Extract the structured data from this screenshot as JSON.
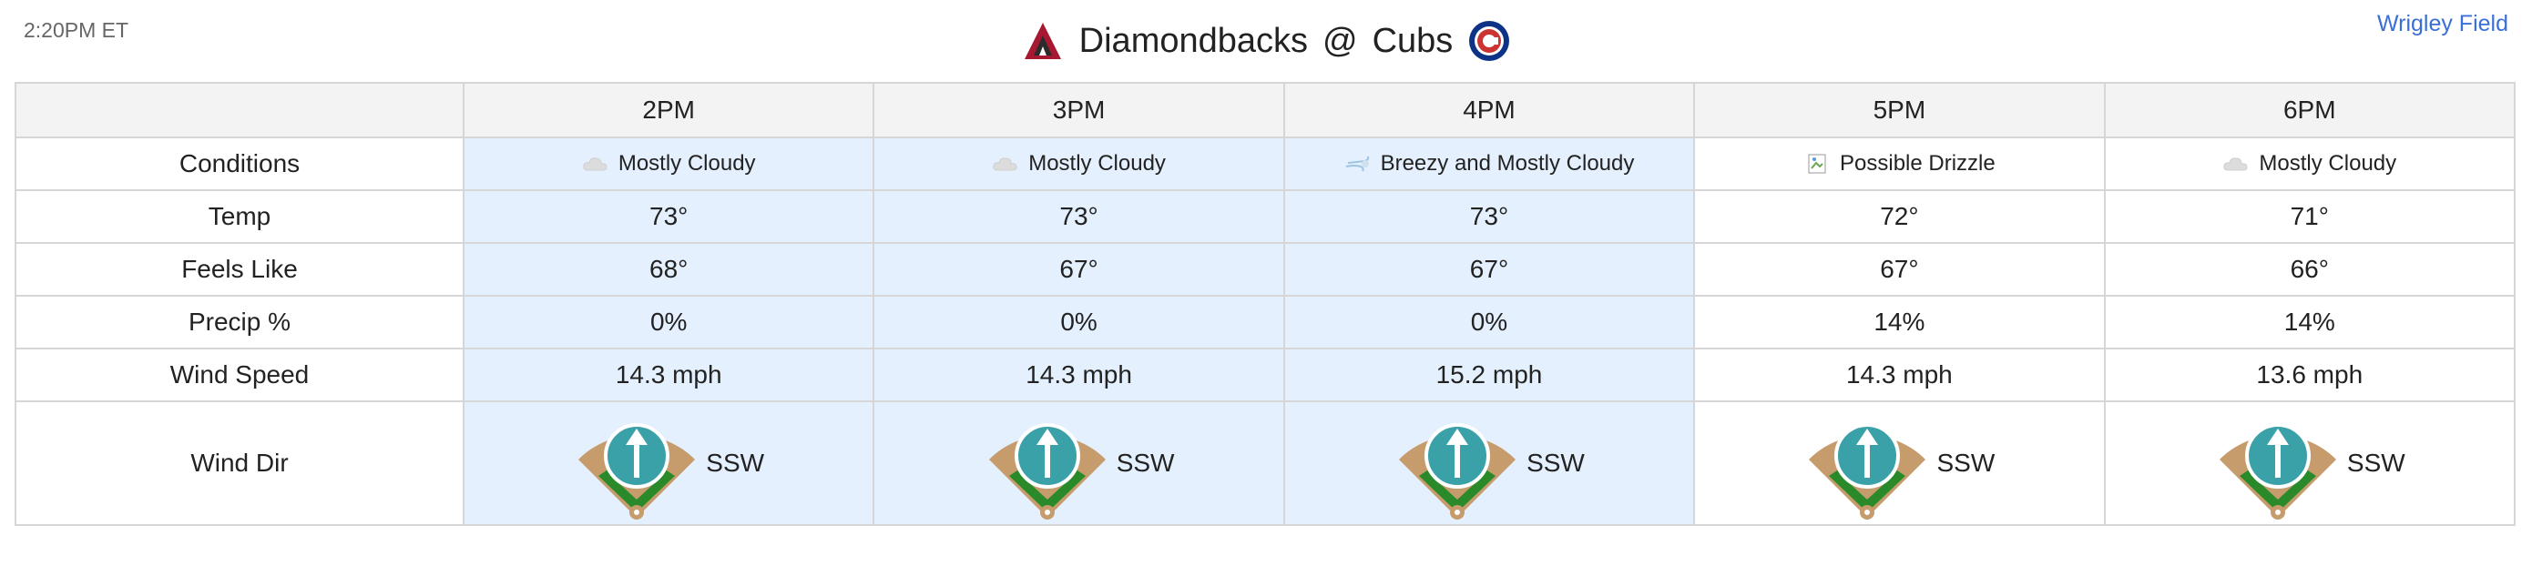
{
  "header": {
    "time": "2:20PM ET",
    "away_team": "Diamondbacks",
    "separator": "@",
    "home_team": "Cubs",
    "venue": "Wrigley Field"
  },
  "colors": {
    "highlight_column": "#e4f0fd",
    "link": "#3a6fd8",
    "dbacks_red": "#a71930",
    "cubs_blue": "#0e3386",
    "cubs_red": "#cc3433",
    "field_dirt": "#c69c6d",
    "field_grass": "#2a8a2a",
    "compass_teal": "#3aa1a8"
  },
  "row_labels": {
    "conditions": "Conditions",
    "temp": "Temp",
    "feels_like": "Feels Like",
    "precip": "Precip %",
    "wind_speed": "Wind Speed",
    "wind_dir": "Wind Dir"
  },
  "hours": [
    {
      "time": "2PM",
      "highlighted": true,
      "conditions": "Mostly Cloudy",
      "condition_icon": "cloud-icon",
      "temp": "73°",
      "feels_like": "68°",
      "precip": "0%",
      "wind_speed": "14.3 mph",
      "wind_dir": "SSW"
    },
    {
      "time": "3PM",
      "highlighted": true,
      "conditions": "Mostly Cloudy",
      "condition_icon": "cloud-icon",
      "temp": "73°",
      "feels_like": "67°",
      "precip": "0%",
      "wind_speed": "14.3 mph",
      "wind_dir": "SSW"
    },
    {
      "time": "4PM",
      "highlighted": true,
      "conditions": "Breezy and Mostly Cloudy",
      "condition_icon": "wind-icon",
      "temp": "73°",
      "feels_like": "67°",
      "precip": "0%",
      "wind_speed": "15.2 mph",
      "wind_dir": "SSW"
    },
    {
      "time": "5PM",
      "highlighted": false,
      "conditions": "Possible Drizzle",
      "condition_icon": "broken-image-icon",
      "temp": "72°",
      "feels_like": "67°",
      "precip": "14%",
      "wind_speed": "14.3 mph",
      "wind_dir": "SSW"
    },
    {
      "time": "6PM",
      "highlighted": false,
      "conditions": "Mostly Cloudy",
      "condition_icon": "cloud-icon",
      "temp": "71°",
      "feels_like": "66°",
      "precip": "14%",
      "wind_speed": "13.6 mph",
      "wind_dir": "SSW"
    }
  ]
}
